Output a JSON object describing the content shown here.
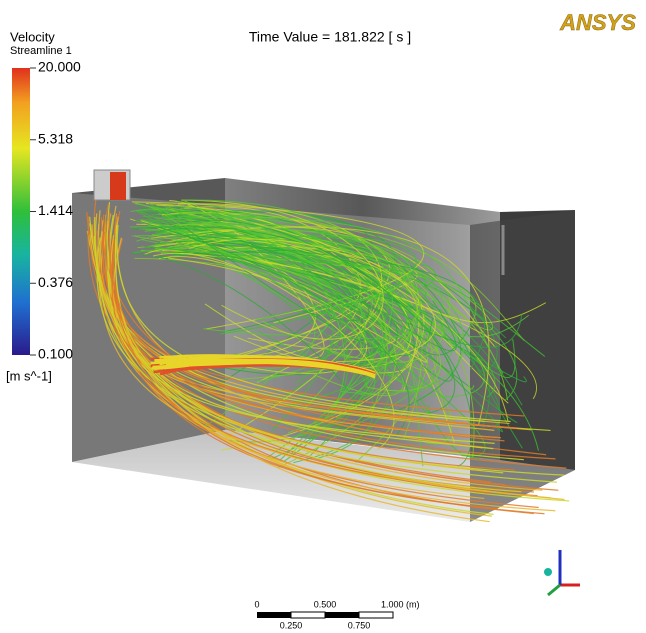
{
  "header": {
    "time_label": "Time Value = 181.822 [ s ]",
    "logo": "ANSYS"
  },
  "legend": {
    "title": "Velocity",
    "subtitle": "Streamline 1",
    "unit": "[m s^-1]",
    "log_scale": true,
    "ticks": [
      {
        "value": 20,
        "label": "20.000"
      },
      {
        "value": 5.318,
        "label": "5.318"
      },
      {
        "value": 1.414,
        "label": "1.414"
      },
      {
        "value": 0.376,
        "label": "0.376"
      },
      {
        "value": 0.1,
        "label": "0.100"
      }
    ]
  },
  "scale_bar": {
    "top_labels": [
      "0",
      "0.500",
      "1.000 (m)"
    ],
    "bottom_labels": [
      "0.250",
      "0.750"
    ]
  }
}
